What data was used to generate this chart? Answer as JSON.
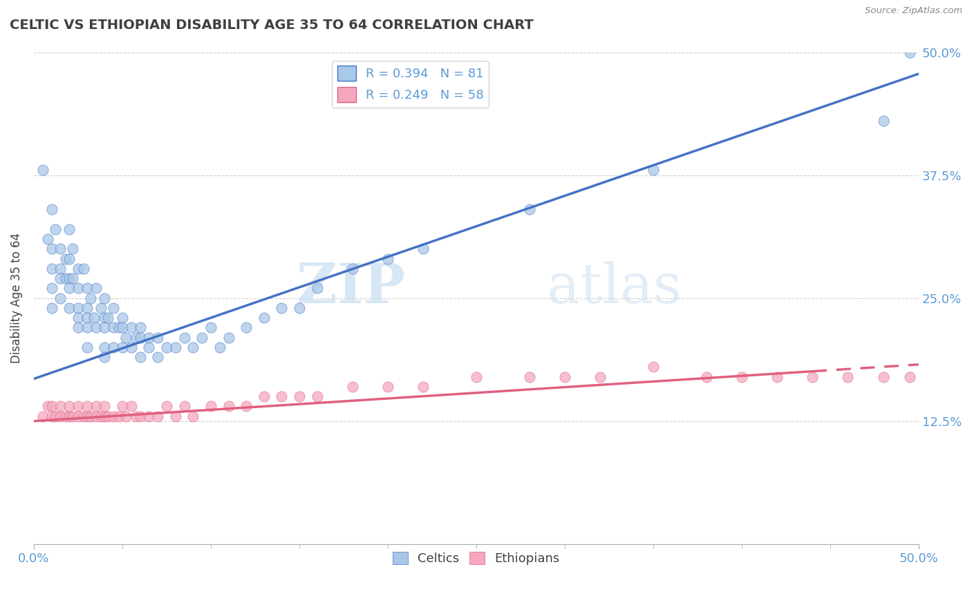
{
  "title": "CELTIC VS ETHIOPIAN DISABILITY AGE 35 TO 64 CORRELATION CHART",
  "source_text": "Source: ZipAtlas.com",
  "ylabel": "Disability Age 35 to 64",
  "xlim": [
    0.0,
    0.5
  ],
  "ylim": [
    0.0,
    0.5
  ],
  "xtick_labels": [
    "0.0%",
    "50.0%"
  ],
  "xtick_vals": [
    0.0,
    0.5
  ],
  "ytick_labels": [
    "12.5%",
    "25.0%",
    "37.5%",
    "50.0%"
  ],
  "ytick_vals": [
    0.125,
    0.25,
    0.375,
    0.5
  ],
  "celtic_color": "#a8c8e8",
  "ethiopian_color": "#f4a8be",
  "celtic_line_color": "#4472c4",
  "ethiopian_line_color": "#e06080",
  "legend_R_celtic": "R = 0.394",
  "legend_N_celtic": "N = 81",
  "legend_R_ethiopian": "R = 0.249",
  "legend_N_ethiopian": "N = 58",
  "watermark_zip": "ZIP",
  "watermark_atlas": "atlas",
  "background_color": "#ffffff",
  "grid_color": "#d0d0d0",
  "title_color": "#404040",
  "axis_label_color": "#5b9bd5",
  "celtic_line_intercept": 0.168,
  "celtic_line_slope": 0.62,
  "ethiopian_line_intercept": 0.125,
  "ethiopian_line_slope": 0.115,
  "celtic_scatter_x": [
    0.005,
    0.008,
    0.01,
    0.01,
    0.01,
    0.01,
    0.01,
    0.012,
    0.015,
    0.015,
    0.015,
    0.015,
    0.018,
    0.018,
    0.02,
    0.02,
    0.02,
    0.02,
    0.02,
    0.022,
    0.022,
    0.025,
    0.025,
    0.025,
    0.025,
    0.025,
    0.028,
    0.03,
    0.03,
    0.03,
    0.03,
    0.03,
    0.032,
    0.034,
    0.035,
    0.035,
    0.038,
    0.04,
    0.04,
    0.04,
    0.04,
    0.04,
    0.042,
    0.045,
    0.045,
    0.045,
    0.048,
    0.05,
    0.05,
    0.05,
    0.052,
    0.055,
    0.055,
    0.058,
    0.06,
    0.06,
    0.06,
    0.065,
    0.065,
    0.07,
    0.07,
    0.075,
    0.08,
    0.085,
    0.09,
    0.095,
    0.1,
    0.105,
    0.11,
    0.12,
    0.13,
    0.14,
    0.15,
    0.16,
    0.18,
    0.2,
    0.22,
    0.28,
    0.35,
    0.48,
    0.495
  ],
  "celtic_scatter_y": [
    0.38,
    0.31,
    0.34,
    0.3,
    0.28,
    0.26,
    0.24,
    0.32,
    0.3,
    0.28,
    0.27,
    0.25,
    0.29,
    0.27,
    0.32,
    0.29,
    0.27,
    0.26,
    0.24,
    0.3,
    0.27,
    0.28,
    0.26,
    0.24,
    0.23,
    0.22,
    0.28,
    0.26,
    0.24,
    0.23,
    0.22,
    0.2,
    0.25,
    0.23,
    0.26,
    0.22,
    0.24,
    0.25,
    0.23,
    0.22,
    0.2,
    0.19,
    0.23,
    0.24,
    0.22,
    0.2,
    0.22,
    0.23,
    0.22,
    0.2,
    0.21,
    0.22,
    0.2,
    0.21,
    0.22,
    0.21,
    0.19,
    0.21,
    0.2,
    0.21,
    0.19,
    0.2,
    0.2,
    0.21,
    0.2,
    0.21,
    0.22,
    0.2,
    0.21,
    0.22,
    0.23,
    0.24,
    0.24,
    0.26,
    0.28,
    0.29,
    0.3,
    0.34,
    0.38,
    0.43,
    0.5
  ],
  "ethiopian_scatter_x": [
    0.005,
    0.008,
    0.01,
    0.01,
    0.012,
    0.015,
    0.015,
    0.018,
    0.02,
    0.02,
    0.022,
    0.025,
    0.025,
    0.028,
    0.03,
    0.03,
    0.032,
    0.035,
    0.035,
    0.038,
    0.04,
    0.04,
    0.042,
    0.045,
    0.048,
    0.05,
    0.052,
    0.055,
    0.058,
    0.06,
    0.065,
    0.07,
    0.075,
    0.08,
    0.085,
    0.09,
    0.1,
    0.11,
    0.12,
    0.13,
    0.14,
    0.15,
    0.16,
    0.18,
    0.2,
    0.22,
    0.25,
    0.28,
    0.3,
    0.32,
    0.35,
    0.38,
    0.4,
    0.42,
    0.44,
    0.46,
    0.48,
    0.495
  ],
  "ethiopian_scatter_y": [
    0.13,
    0.14,
    0.13,
    0.14,
    0.13,
    0.13,
    0.14,
    0.13,
    0.13,
    0.14,
    0.13,
    0.14,
    0.13,
    0.13,
    0.14,
    0.13,
    0.13,
    0.14,
    0.13,
    0.13,
    0.14,
    0.13,
    0.13,
    0.13,
    0.13,
    0.14,
    0.13,
    0.14,
    0.13,
    0.13,
    0.13,
    0.13,
    0.14,
    0.13,
    0.14,
    0.13,
    0.14,
    0.14,
    0.14,
    0.15,
    0.15,
    0.15,
    0.15,
    0.16,
    0.16,
    0.16,
    0.17,
    0.17,
    0.17,
    0.17,
    0.18,
    0.17,
    0.17,
    0.17,
    0.17,
    0.17,
    0.17,
    0.17
  ]
}
